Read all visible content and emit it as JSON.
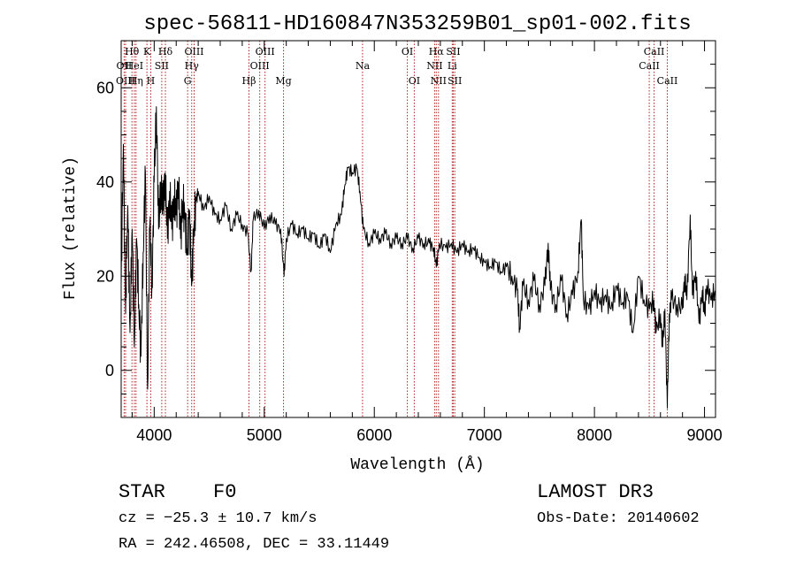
{
  "chart_data": {
    "type": "line",
    "title": "spec-56811-HD160847N353259B01_sp01-002.fits",
    "xlabel": "Wavelength (Å)",
    "ylabel": "Flux (relative)",
    "xlim": [
      3700,
      9100
    ],
    "ylim": [
      -10,
      70
    ],
    "x_ticks": [
      4000,
      5000,
      6000,
      7000,
      8000,
      9000
    ],
    "x_tick_labels": [
      "4000",
      "5000",
      "6000",
      "7000",
      "8000",
      "9000"
    ],
    "y_ticks": [
      0,
      20,
      40,
      60
    ],
    "y_tick_labels": [
      "0",
      "20",
      "40",
      "60"
    ],
    "grid": false,
    "series": [
      {
        "name": "flux",
        "color": "#000000",
        "points": [
          [
            3700,
            18
          ],
          [
            3720,
            48
          ],
          [
            3740,
            12
          ],
          [
            3760,
            35
          ],
          [
            3780,
            8
          ],
          [
            3800,
            30
          ],
          [
            3820,
            5
          ],
          [
            3840,
            28
          ],
          [
            3860,
            14
          ],
          [
            3880,
            3
          ],
          [
            3900,
            25
          ],
          [
            3920,
            42
          ],
          [
            3940,
            -4
          ],
          [
            3960,
            31
          ],
          [
            3980,
            18
          ],
          [
            4000,
            40
          ],
          [
            4020,
            56
          ],
          [
            4040,
            30
          ],
          [
            4060,
            40
          ],
          [
            4080,
            34
          ],
          [
            4100,
            42
          ],
          [
            4120,
            28
          ],
          [
            4140,
            38
          ],
          [
            4160,
            30
          ],
          [
            4180,
            37
          ],
          [
            4200,
            33
          ],
          [
            4220,
            40
          ],
          [
            4240,
            28
          ],
          [
            4260,
            36
          ],
          [
            4280,
            32
          ],
          [
            4300,
            25
          ],
          [
            4320,
            34
          ],
          [
            4340,
            18
          ],
          [
            4360,
            30
          ],
          [
            4380,
            36
          ],
          [
            4400,
            38
          ],
          [
            4450,
            34
          ],
          [
            4500,
            37
          ],
          [
            4550,
            33
          ],
          [
            4600,
            32
          ],
          [
            4650,
            35
          ],
          [
            4700,
            30
          ],
          [
            4750,
            33
          ],
          [
            4800,
            31
          ],
          [
            4850,
            29
          ],
          [
            4880,
            21
          ],
          [
            4900,
            32
          ],
          [
            4950,
            34
          ],
          [
            5000,
            30
          ],
          [
            5050,
            33
          ],
          [
            5100,
            31
          ],
          [
            5150,
            30
          ],
          [
            5180,
            20
          ],
          [
            5200,
            28
          ],
          [
            5250,
            31
          ],
          [
            5300,
            29
          ],
          [
            5350,
            30
          ],
          [
            5400,
            28
          ],
          [
            5450,
            29
          ],
          [
            5500,
            26
          ],
          [
            5550,
            29
          ],
          [
            5600,
            25
          ],
          [
            5650,
            31
          ],
          [
            5700,
            33
          ],
          [
            5730,
            39
          ],
          [
            5760,
            43
          ],
          [
            5800,
            42
          ],
          [
            5840,
            43
          ],
          [
            5870,
            38
          ],
          [
            5900,
            30
          ],
          [
            5950,
            27
          ],
          [
            6000,
            29
          ],
          [
            6050,
            28
          ],
          [
            6100,
            29
          ],
          [
            6150,
            27
          ],
          [
            6200,
            28
          ],
          [
            6250,
            27
          ],
          [
            6300,
            28
          ],
          [
            6350,
            26
          ],
          [
            6400,
            28
          ],
          [
            6450,
            27
          ],
          [
            6500,
            27
          ],
          [
            6540,
            26
          ],
          [
            6563,
            22
          ],
          [
            6590,
            27
          ],
          [
            6650,
            26
          ],
          [
            6700,
            27
          ],
          [
            6750,
            25
          ],
          [
            6800,
            27
          ],
          [
            6850,
            25
          ],
          [
            6900,
            26
          ],
          [
            6950,
            24
          ],
          [
            7000,
            23
          ],
          [
            7050,
            22
          ],
          [
            7100,
            23
          ],
          [
            7150,
            21
          ],
          [
            7200,
            22
          ],
          [
            7250,
            20
          ],
          [
            7300,
            17
          ],
          [
            7320,
            9
          ],
          [
            7350,
            18
          ],
          [
            7400,
            15
          ],
          [
            7450,
            19
          ],
          [
            7500,
            14
          ],
          [
            7550,
            18
          ],
          [
            7580,
            27
          ],
          [
            7600,
            17
          ],
          [
            7650,
            14
          ],
          [
            7700,
            19
          ],
          [
            7750,
            12
          ],
          [
            7800,
            16
          ],
          [
            7850,
            21
          ],
          [
            7880,
            32
          ],
          [
            7900,
            15
          ],
          [
            7950,
            13
          ],
          [
            8000,
            17
          ],
          [
            8050,
            14
          ],
          [
            8100,
            16
          ],
          [
            8150,
            13
          ],
          [
            8200,
            18
          ],
          [
            8250,
            14
          ],
          [
            8300,
            16
          ],
          [
            8350,
            8
          ],
          [
            8400,
            20
          ],
          [
            8450,
            15
          ],
          [
            8500,
            13
          ],
          [
            8540,
            15
          ],
          [
            8560,
            8
          ],
          [
            8600,
            12
          ],
          [
            8620,
            5
          ],
          [
            8640,
            13
          ],
          [
            8662,
            -8
          ],
          [
            8680,
            12
          ],
          [
            8700,
            15
          ],
          [
            8750,
            14
          ],
          [
            8800,
            13
          ],
          [
            8820,
            20
          ],
          [
            8840,
            15
          ],
          [
            8870,
            33
          ],
          [
            8890,
            16
          ],
          [
            8920,
            21
          ],
          [
            8950,
            10
          ],
          [
            8980,
            17
          ],
          [
            9000,
            12
          ],
          [
            9020,
            18
          ],
          [
            9060,
            15
          ],
          [
            9100,
            17
          ]
        ]
      }
    ],
    "line_markers": [
      {
        "label": "Hθ",
        "wavelength": 3798,
        "row": 1
      },
      {
        "label": "OII",
        "wavelength": 3727,
        "row": 2
      },
      {
        "label": "HeI",
        "wavelength": 3820,
        "row": 2
      },
      {
        "label": "SII",
        "wavelength": 4069,
        "row": 2
      },
      {
        "label": "OIII",
        "wavelength": 3740,
        "row": 3
      },
      {
        "label": "Hη",
        "wavelength": 3835,
        "row": 3
      },
      {
        "label": "H",
        "wavelength": 3969,
        "row": 3
      },
      {
        "label": "K",
        "wavelength": 3934,
        "row": 1
      },
      {
        "label": "Hδ",
        "wavelength": 4102,
        "row": 1
      },
      {
        "label": "OIII",
        "wavelength": 4363,
        "row": 1
      },
      {
        "label": "Hγ",
        "wavelength": 4341,
        "row": 2
      },
      {
        "label": "G",
        "wavelength": 4304,
        "row": 3
      },
      {
        "label": "Hβ",
        "wavelength": 4861,
        "row": 3
      },
      {
        "label": "OIII",
        "wavelength": 5007,
        "row": 1
      },
      {
        "label": "OIII",
        "wavelength": 4959,
        "row": 2
      },
      {
        "label": "Mg",
        "wavelength": 5175,
        "row": 3
      },
      {
        "label": "Na",
        "wavelength": 5893,
        "row": 2
      },
      {
        "label": "OI",
        "wavelength": 6300,
        "row": 1
      },
      {
        "label": "OI",
        "wavelength": 6363,
        "row": 3
      },
      {
        "label": "Hα",
        "wavelength": 6563,
        "row": 1
      },
      {
        "label": "NII",
        "wavelength": 6548,
        "row": 2
      },
      {
        "label": "NII",
        "wavelength": 6583,
        "row": 3
      },
      {
        "label": "SII",
        "wavelength": 6717,
        "row": 1
      },
      {
        "label": "Li",
        "wavelength": 6708,
        "row": 2
      },
      {
        "label": "SII",
        "wavelength": 6731,
        "row": 3
      },
      {
        "label": "CaII",
        "wavelength": 8542,
        "row": 1
      },
      {
        "label": "CaII",
        "wavelength": 8498,
        "row": 2
      },
      {
        "label": "CaII",
        "wavelength": 8662,
        "row": 3
      }
    ],
    "marker_color": "#b22222"
  },
  "info": {
    "class_label": "STAR",
    "subclass": "F0",
    "survey": "LAMOST DR3",
    "cz": "cz = −25.3 ± 10.7 km/s",
    "obs_date": "Obs-Date: 20140602",
    "coords": "RA = 242.46508, DEC =  33.11449"
  }
}
